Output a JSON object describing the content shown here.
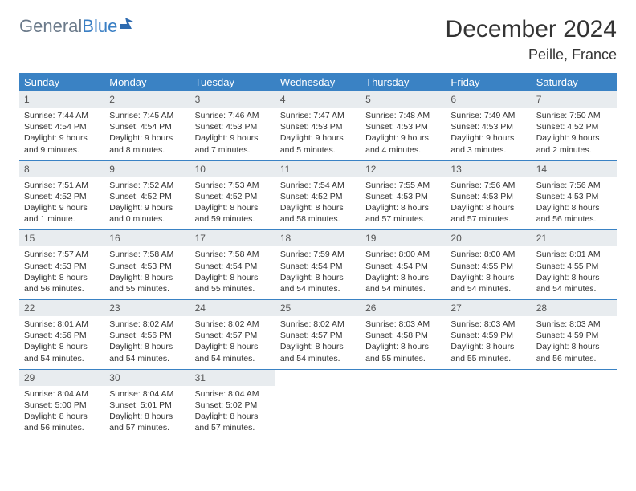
{
  "brand": {
    "part1": "General",
    "part2": "Blue"
  },
  "title": "December 2024",
  "location": "Peille, France",
  "colors": {
    "header_bg": "#3a82c4",
    "header_text": "#ffffff",
    "daynum_bg": "#e8ecef",
    "row_border": "#3a82c4",
    "body_text": "#333333",
    "logo_gray": "#6b7a8a",
    "logo_blue": "#3a7fc4"
  },
  "day_labels": [
    "Sunday",
    "Monday",
    "Tuesday",
    "Wednesday",
    "Thursday",
    "Friday",
    "Saturday"
  ],
  "weeks": [
    [
      {
        "n": "1",
        "sr": "Sunrise: 7:44 AM",
        "ss": "Sunset: 4:54 PM",
        "dl": "Daylight: 9 hours and 9 minutes."
      },
      {
        "n": "2",
        "sr": "Sunrise: 7:45 AM",
        "ss": "Sunset: 4:54 PM",
        "dl": "Daylight: 9 hours and 8 minutes."
      },
      {
        "n": "3",
        "sr": "Sunrise: 7:46 AM",
        "ss": "Sunset: 4:53 PM",
        "dl": "Daylight: 9 hours and 7 minutes."
      },
      {
        "n": "4",
        "sr": "Sunrise: 7:47 AM",
        "ss": "Sunset: 4:53 PM",
        "dl": "Daylight: 9 hours and 5 minutes."
      },
      {
        "n": "5",
        "sr": "Sunrise: 7:48 AM",
        "ss": "Sunset: 4:53 PM",
        "dl": "Daylight: 9 hours and 4 minutes."
      },
      {
        "n": "6",
        "sr": "Sunrise: 7:49 AM",
        "ss": "Sunset: 4:53 PM",
        "dl": "Daylight: 9 hours and 3 minutes."
      },
      {
        "n": "7",
        "sr": "Sunrise: 7:50 AM",
        "ss": "Sunset: 4:52 PM",
        "dl": "Daylight: 9 hours and 2 minutes."
      }
    ],
    [
      {
        "n": "8",
        "sr": "Sunrise: 7:51 AM",
        "ss": "Sunset: 4:52 PM",
        "dl": "Daylight: 9 hours and 1 minute."
      },
      {
        "n": "9",
        "sr": "Sunrise: 7:52 AM",
        "ss": "Sunset: 4:52 PM",
        "dl": "Daylight: 9 hours and 0 minutes."
      },
      {
        "n": "10",
        "sr": "Sunrise: 7:53 AM",
        "ss": "Sunset: 4:52 PM",
        "dl": "Daylight: 8 hours and 59 minutes."
      },
      {
        "n": "11",
        "sr": "Sunrise: 7:54 AM",
        "ss": "Sunset: 4:52 PM",
        "dl": "Daylight: 8 hours and 58 minutes."
      },
      {
        "n": "12",
        "sr": "Sunrise: 7:55 AM",
        "ss": "Sunset: 4:53 PM",
        "dl": "Daylight: 8 hours and 57 minutes."
      },
      {
        "n": "13",
        "sr": "Sunrise: 7:56 AM",
        "ss": "Sunset: 4:53 PM",
        "dl": "Daylight: 8 hours and 57 minutes."
      },
      {
        "n": "14",
        "sr": "Sunrise: 7:56 AM",
        "ss": "Sunset: 4:53 PM",
        "dl": "Daylight: 8 hours and 56 minutes."
      }
    ],
    [
      {
        "n": "15",
        "sr": "Sunrise: 7:57 AM",
        "ss": "Sunset: 4:53 PM",
        "dl": "Daylight: 8 hours and 56 minutes."
      },
      {
        "n": "16",
        "sr": "Sunrise: 7:58 AM",
        "ss": "Sunset: 4:53 PM",
        "dl": "Daylight: 8 hours and 55 minutes."
      },
      {
        "n": "17",
        "sr": "Sunrise: 7:58 AM",
        "ss": "Sunset: 4:54 PM",
        "dl": "Daylight: 8 hours and 55 minutes."
      },
      {
        "n": "18",
        "sr": "Sunrise: 7:59 AM",
        "ss": "Sunset: 4:54 PM",
        "dl": "Daylight: 8 hours and 54 minutes."
      },
      {
        "n": "19",
        "sr": "Sunrise: 8:00 AM",
        "ss": "Sunset: 4:54 PM",
        "dl": "Daylight: 8 hours and 54 minutes."
      },
      {
        "n": "20",
        "sr": "Sunrise: 8:00 AM",
        "ss": "Sunset: 4:55 PM",
        "dl": "Daylight: 8 hours and 54 minutes."
      },
      {
        "n": "21",
        "sr": "Sunrise: 8:01 AM",
        "ss": "Sunset: 4:55 PM",
        "dl": "Daylight: 8 hours and 54 minutes."
      }
    ],
    [
      {
        "n": "22",
        "sr": "Sunrise: 8:01 AM",
        "ss": "Sunset: 4:56 PM",
        "dl": "Daylight: 8 hours and 54 minutes."
      },
      {
        "n": "23",
        "sr": "Sunrise: 8:02 AM",
        "ss": "Sunset: 4:56 PM",
        "dl": "Daylight: 8 hours and 54 minutes."
      },
      {
        "n": "24",
        "sr": "Sunrise: 8:02 AM",
        "ss": "Sunset: 4:57 PM",
        "dl": "Daylight: 8 hours and 54 minutes."
      },
      {
        "n": "25",
        "sr": "Sunrise: 8:02 AM",
        "ss": "Sunset: 4:57 PM",
        "dl": "Daylight: 8 hours and 54 minutes."
      },
      {
        "n": "26",
        "sr": "Sunrise: 8:03 AM",
        "ss": "Sunset: 4:58 PM",
        "dl": "Daylight: 8 hours and 55 minutes."
      },
      {
        "n": "27",
        "sr": "Sunrise: 8:03 AM",
        "ss": "Sunset: 4:59 PM",
        "dl": "Daylight: 8 hours and 55 minutes."
      },
      {
        "n": "28",
        "sr": "Sunrise: 8:03 AM",
        "ss": "Sunset: 4:59 PM",
        "dl": "Daylight: 8 hours and 56 minutes."
      }
    ],
    [
      {
        "n": "29",
        "sr": "Sunrise: 8:04 AM",
        "ss": "Sunset: 5:00 PM",
        "dl": "Daylight: 8 hours and 56 minutes."
      },
      {
        "n": "30",
        "sr": "Sunrise: 8:04 AM",
        "ss": "Sunset: 5:01 PM",
        "dl": "Daylight: 8 hours and 57 minutes."
      },
      {
        "n": "31",
        "sr": "Sunrise: 8:04 AM",
        "ss": "Sunset: 5:02 PM",
        "dl": "Daylight: 8 hours and 57 minutes."
      },
      null,
      null,
      null,
      null
    ]
  ]
}
